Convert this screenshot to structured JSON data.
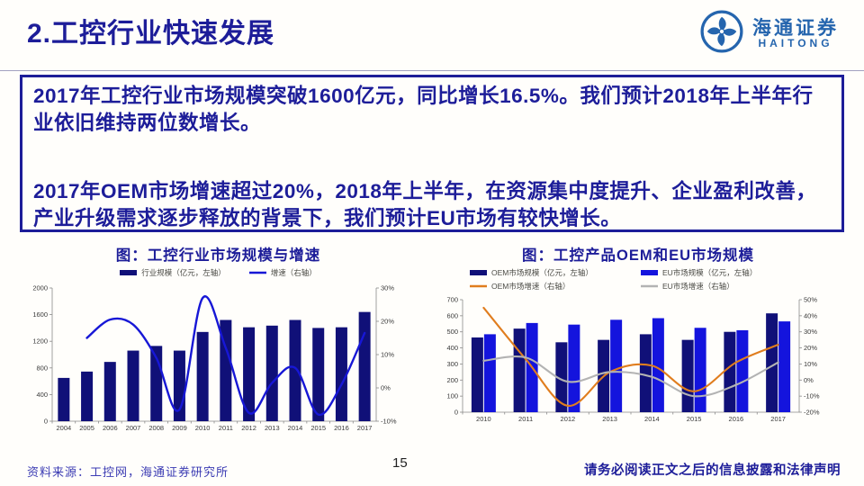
{
  "page": {
    "title": "2.工控行业快速发展",
    "page_number": "15",
    "source_note": "资料来源：工控网，海通证券研究所",
    "disclaimer": "请务必阅读正文之后的信息披露和法律声明"
  },
  "logo": {
    "cn": "海通证券",
    "en": "HAITONG",
    "color": "#2565ae"
  },
  "highlight_box": {
    "paragraph1": "2017年工控行业市场规模突破1600亿元，同比增长16.5%。我们预计2018年上半年行业依旧维持两位数增长。",
    "paragraph2": "2017年OEM市场增速超过20%，2018年上半年，在资源集中度提升、企业盈利改善，产业升级需求逐步释放的背景下，我们预计EU市场有较快增长。"
  },
  "colors": {
    "navy_text": "#1d1d99",
    "bar_dark_navy": "#101078",
    "bar_bright_blue": "#1414dd",
    "line_blue": "#1717d6",
    "line_orange": "#e07d1e",
    "line_gray": "#b3b3b3",
    "axis_gray": "#8a8a8a"
  },
  "chart_data": [
    {
      "type": "bar",
      "title": "图：工控行业市场规模与增速",
      "categories": [
        "2004",
        "2005",
        "2006",
        "2007",
        "2008",
        "2009",
        "2010",
        "2011",
        "2012",
        "2013",
        "2014",
        "2015",
        "2016",
        "2017"
      ],
      "bar_series": [
        {
          "name": "行业规模（亿元，左轴）",
          "color": "#101078",
          "axis": "left",
          "values": [
            650,
            745,
            890,
            1060,
            1130,
            1060,
            1340,
            1520,
            1410,
            1435,
            1520,
            1400,
            1410,
            1640
          ]
        }
      ],
      "line_series": [
        {
          "name": "增速（右轴）",
          "color": "#1717d6",
          "axis": "right",
          "width": 2.4,
          "values": [
            null,
            15,
            20.5,
            19,
            9,
            -6.5,
            27,
            12,
            -7.5,
            1.5,
            6,
            -8,
            1,
            16.5
          ]
        }
      ],
      "left_axis": {
        "min": 0,
        "max": 2000,
        "step": 400,
        "suffix": ""
      },
      "right_axis": {
        "min": -10,
        "max": 30,
        "step": 10,
        "suffix": "%"
      },
      "grid": false,
      "legend_position": "top"
    },
    {
      "type": "bar",
      "title": "图：工控产品OEM和EU市场规模",
      "categories": [
        "2010",
        "2011",
        "2012",
        "2013",
        "2014",
        "2015",
        "2016",
        "2017"
      ],
      "bar_series": [
        {
          "name": "OEM市场规模（亿元，左轴）",
          "color": "#101078",
          "axis": "left",
          "values": [
            465,
            520,
            435,
            450,
            485,
            450,
            500,
            615
          ]
        },
        {
          "name": "EU市场规模（亿元，左轴）",
          "color": "#1414dd",
          "axis": "left",
          "values": [
            485,
            555,
            545,
            575,
            585,
            525,
            510,
            565
          ]
        }
      ],
      "line_series": [
        {
          "name": "OEM市场增速（右轴）",
          "color": "#e07d1e",
          "axis": "right",
          "width": 2.1,
          "values": [
            45,
            13,
            -16,
            5,
            9,
            -7,
            11,
            22
          ]
        },
        {
          "name": "EU市场增速（右轴）",
          "color": "#b3b3b3",
          "axis": "right",
          "width": 2.1,
          "values": [
            12,
            14,
            -1,
            5,
            2,
            -10,
            -3,
            11
          ]
        }
      ],
      "left_axis": {
        "min": 0,
        "max": 700,
        "step": 100,
        "suffix": ""
      },
      "right_axis": {
        "min": -20,
        "max": 50,
        "step": 10,
        "suffix": "%"
      },
      "grid": false,
      "legend_position": "top"
    }
  ]
}
